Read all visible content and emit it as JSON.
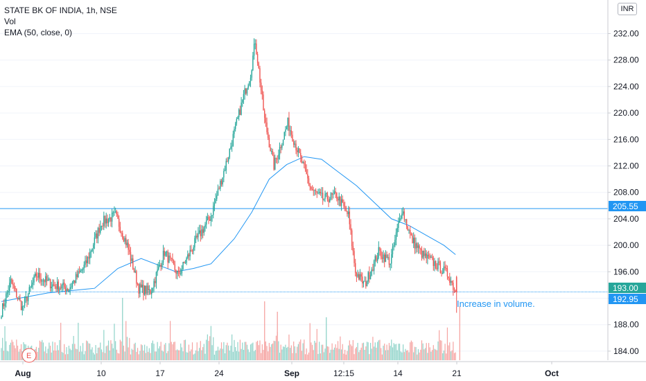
{
  "legend": {
    "symbol": "STATE BK OF INDIA, 1h, NSE",
    "volume": "Vol",
    "ema": "EMA (50, close, 0)"
  },
  "currency": "INR",
  "earnings_marker": "E",
  "annotation": "Increase in volume.",
  "colors": {
    "up": "#26a69a",
    "down": "#ef5350",
    "up_volume": "#8fd3c9",
    "down_volume": "#f5a3a1",
    "ema": "#2196f3",
    "hline": "#2196f3",
    "grid": "#f0f3fa",
    "last_price": "#26a69a",
    "hline_label": "#2196f3"
  },
  "chart_data": {
    "type": "candlestick",
    "symbol": "STATE BK OF INDIA",
    "interval": "1h",
    "exchange": "NSE",
    "y_axis": {
      "ticks": [
        "232.00",
        "228.00",
        "224.00",
        "220.00",
        "216.00",
        "212.00",
        "208.00",
        "204.00",
        "200.00",
        "196.00",
        "192.00",
        "188.00",
        "184.00"
      ],
      "range": [
        182.0,
        234.5
      ],
      "position": "right"
    },
    "x_axis": {
      "ticks": [
        "Aug",
        "10",
        "17",
        "24",
        "Sep",
        "12:15",
        "14",
        "21",
        "Oct"
      ]
    },
    "horizontal_lines": [
      {
        "price": 205.55,
        "label": "205.55",
        "style": "solid"
      },
      {
        "price": 192.95,
        "label": "192.95",
        "style": "dotted"
      }
    ],
    "last_price": {
      "value": 193.0,
      "label": "193.00"
    },
    "grid": false,
    "key_points": [
      {
        "index": 0,
        "price": 190.0
      },
      {
        "index": 8,
        "price": 194.5
      },
      {
        "index": 18,
        "price": 190.5
      },
      {
        "index": 30,
        "price": 195.5
      },
      {
        "index": 44,
        "price": 194.0
      },
      {
        "index": 58,
        "price": 193.5
      },
      {
        "index": 72,
        "price": 197.0
      },
      {
        "index": 86,
        "price": 203.5
      },
      {
        "index": 98,
        "price": 204.5
      },
      {
        "index": 108,
        "price": 200.0
      },
      {
        "index": 118,
        "price": 193.5
      },
      {
        "index": 128,
        "price": 193.0
      },
      {
        "index": 140,
        "price": 199.0
      },
      {
        "index": 152,
        "price": 195.5
      },
      {
        "index": 168,
        "price": 201.0
      },
      {
        "index": 180,
        "price": 204.5
      },
      {
        "index": 194,
        "price": 213.0
      },
      {
        "index": 208,
        "price": 222.5
      },
      {
        "index": 214,
        "price": 226.0
      },
      {
        "index": 218,
        "price": 231.0
      },
      {
        "index": 226,
        "price": 219.0
      },
      {
        "index": 234,
        "price": 212.0
      },
      {
        "index": 246,
        "price": 218.5
      },
      {
        "index": 256,
        "price": 213.5
      },
      {
        "index": 266,
        "price": 208.5
      },
      {
        "index": 276,
        "price": 207.0
      },
      {
        "index": 288,
        "price": 207.5
      },
      {
        "index": 298,
        "price": 204.5
      },
      {
        "index": 304,
        "price": 196.0
      },
      {
        "index": 312,
        "price": 194.0
      },
      {
        "index": 324,
        "price": 199.0
      },
      {
        "index": 334,
        "price": 197.5
      },
      {
        "index": 344,
        "price": 205.5
      },
      {
        "index": 352,
        "price": 201.0
      },
      {
        "index": 362,
        "price": 198.5
      },
      {
        "index": 374,
        "price": 197.0
      },
      {
        "index": 384,
        "price": 195.5
      },
      {
        "index": 390,
        "price": 193.0
      }
    ],
    "ema": [
      {
        "index": 0,
        "price": 191.5
      },
      {
        "index": 40,
        "price": 192.8
      },
      {
        "index": 80,
        "price": 193.5
      },
      {
        "index": 100,
        "price": 196.5
      },
      {
        "index": 120,
        "price": 198.0
      },
      {
        "index": 135,
        "price": 197.0
      },
      {
        "index": 150,
        "price": 196.0
      },
      {
        "index": 165,
        "price": 196.5
      },
      {
        "index": 180,
        "price": 197.2
      },
      {
        "index": 200,
        "price": 201.0
      },
      {
        "index": 215,
        "price": 205.0
      },
      {
        "index": 230,
        "price": 210.0
      },
      {
        "index": 245,
        "price": 212.2
      },
      {
        "index": 260,
        "price": 213.4
      },
      {
        "index": 275,
        "price": 213.0
      },
      {
        "index": 290,
        "price": 211.0
      },
      {
        "index": 305,
        "price": 209.0
      },
      {
        "index": 320,
        "price": 206.5
      },
      {
        "index": 335,
        "price": 204.0
      },
      {
        "index": 350,
        "price": 203.0
      },
      {
        "index": 365,
        "price": 201.5
      },
      {
        "index": 380,
        "price": 200.0
      },
      {
        "index": 390,
        "price": 198.6
      }
    ]
  }
}
